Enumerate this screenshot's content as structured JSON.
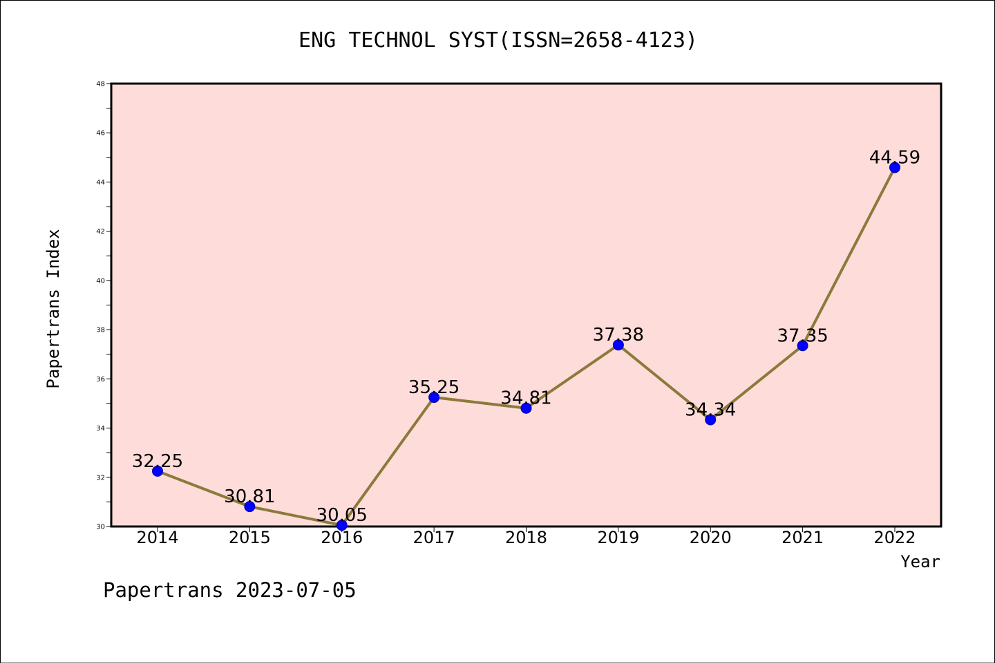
{
  "chart_data": {
    "type": "line",
    "title": "ENG TECHNOL SYST(ISSN=2658-4123)",
    "xlabel": "Year",
    "ylabel": "Papertrans Index",
    "categories": [
      "2014",
      "2015",
      "2016",
      "2017",
      "2018",
      "2019",
      "2020",
      "2021",
      "2022"
    ],
    "values": [
      32.25,
      30.81,
      30.05,
      35.25,
      34.81,
      37.38,
      34.34,
      37.35,
      44.59
    ],
    "data_labels": [
      "32.25",
      "30.81",
      "30.05",
      "35.25",
      "34.81",
      "37.38",
      "34.34",
      "37.35",
      "44.59"
    ],
    "ylim": [
      30,
      48
    ],
    "yticks": [
      30,
      32,
      34,
      36,
      38,
      40,
      42,
      44,
      46,
      48
    ],
    "ytick_labels": [
      "30",
      "32",
      "34",
      "36",
      "38",
      "40",
      "42",
      "44",
      "46",
      "48"
    ],
    "grid": false,
    "legend": "none",
    "colors": {
      "plot_background": "#fddcda",
      "line": "#8b7a3a",
      "marker": "#0000ff"
    }
  },
  "footer": {
    "text": "Papertrans 2023-07-05"
  }
}
